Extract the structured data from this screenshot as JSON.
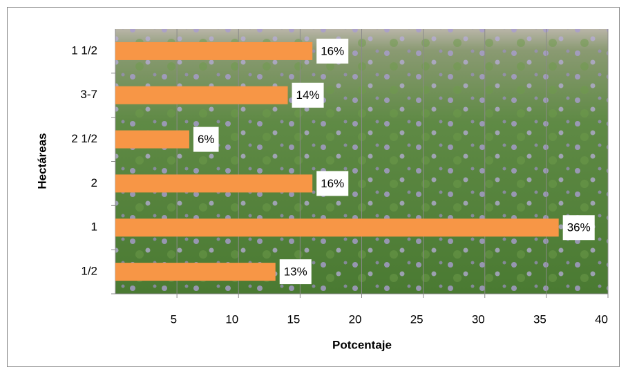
{
  "chart_data": {
    "type": "bar",
    "orientation": "horizontal",
    "x_label": "Potcentaje",
    "y_label": "Hectáreas",
    "categories": [
      "1/2",
      "1",
      "2",
      "2 1/2",
      "3-7",
      "1 1/2"
    ],
    "values": [
      13,
      36,
      16,
      6,
      14,
      16
    ],
    "value_labels": [
      "13%",
      "36%",
      "16%",
      "6%",
      "14%",
      "16%"
    ],
    "color": "#f79646",
    "xlim": [
      0,
      40
    ],
    "xticks": [
      5,
      10,
      15,
      20,
      25,
      30,
      35,
      40
    ],
    "grid": true
  }
}
